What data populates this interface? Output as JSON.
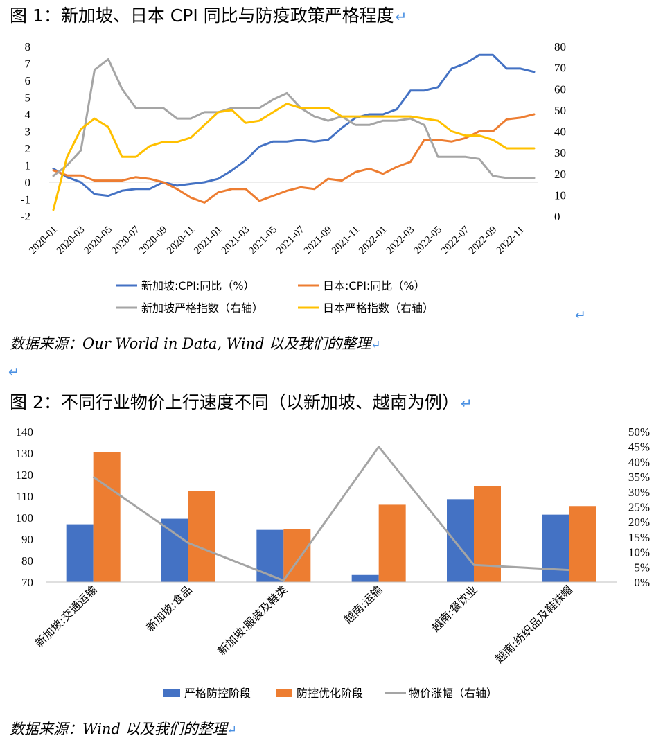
{
  "figure1": {
    "title": "图 1：新加坡、日本 CPI 同比与防疫政策严格程度",
    "source": "数据来源：Our World in Data, Wind 以及我们的整理"
  },
  "figure2": {
    "title": "图 2：不同行业物价上行速度不同（以新加坡、越南为例）",
    "source": "数据来源：Wind 以及我们的整理"
  },
  "return_mark": "↵",
  "chart_data": [
    {
      "type": "line",
      "dual_axis": true,
      "left_axis": {
        "ylim": [
          -2,
          8
        ],
        "ticks": [
          "-2",
          "-1",
          "0",
          "1",
          "2",
          "3",
          "4",
          "5",
          "6",
          "7",
          "8"
        ]
      },
      "right_axis": {
        "ylim": [
          0,
          80
        ],
        "ticks": [
          "0",
          "10",
          "20",
          "30",
          "40",
          "50",
          "60",
          "70",
          "80"
        ]
      },
      "x": [
        "2020-01",
        "2020-02",
        "2020-03",
        "2020-04",
        "2020-05",
        "2020-06",
        "2020-07",
        "2020-08",
        "2020-09",
        "2020-10",
        "2020-11",
        "2020-12",
        "2021-01",
        "2021-02",
        "2021-03",
        "2021-04",
        "2021-05",
        "2021-06",
        "2021-07",
        "2021-08",
        "2021-09",
        "2021-10",
        "2021-11",
        "2021-12",
        "2022-01",
        "2022-02",
        "2022-03",
        "2022-04",
        "2022-05",
        "2022-06",
        "2022-07",
        "2022-08",
        "2022-09",
        "2022-10",
        "2022-11",
        "2022-12"
      ],
      "x_tick_labels": [
        "2020-01",
        "2020-03",
        "2020-05",
        "2020-07",
        "2020-09",
        "2020-11",
        "2021-01",
        "2021-03",
        "2021-05",
        "2021-07",
        "2021-09",
        "2021-11",
        "2022-01",
        "2022-03",
        "2022-05",
        "2022-07",
        "2022-09",
        "2022-11"
      ],
      "legend_position": "bottom",
      "series": [
        {
          "name": "新加坡:CPI:同比（%）",
          "axis": "left",
          "color": "#4472C4",
          "values": [
            0.8,
            0.3,
            0.0,
            -0.7,
            -0.8,
            -0.5,
            -0.4,
            -0.4,
            0.0,
            -0.2,
            -0.1,
            0.0,
            0.2,
            0.7,
            1.3,
            2.1,
            2.4,
            2.4,
            2.5,
            2.4,
            2.5,
            3.2,
            3.8,
            4.0,
            4.0,
            4.3,
            5.4,
            5.4,
            5.6,
            6.7,
            7.0,
            7.5,
            7.5,
            6.7,
            6.7,
            6.5
          ]
        },
        {
          "name": "日本:CPI:同比（%）",
          "axis": "left",
          "color": "#ED7D31",
          "values": [
            0.7,
            0.4,
            0.4,
            0.1,
            0.1,
            0.1,
            0.3,
            0.2,
            0.0,
            -0.4,
            -0.9,
            -1.2,
            -0.6,
            -0.4,
            -0.4,
            -1.1,
            -0.8,
            -0.5,
            -0.3,
            -0.4,
            0.2,
            0.1,
            0.6,
            0.8,
            0.5,
            0.9,
            1.2,
            2.5,
            2.5,
            2.4,
            2.6,
            3.0,
            3.0,
            3.7,
            3.8,
            4.0
          ]
        },
        {
          "name": "新加坡严格指数（右轴）",
          "axis": "right",
          "color": "#A5A5A5",
          "values": [
            19,
            24,
            31,
            69,
            74,
            60,
            51,
            51,
            51,
            46,
            46,
            49,
            49,
            51,
            51,
            51,
            55,
            58,
            51,
            47,
            45,
            47,
            43,
            43,
            45,
            45,
            46,
            43,
            28,
            28,
            28,
            27,
            19,
            18,
            18,
            18
          ]
        },
        {
          "name": "日本严格指数（右轴）",
          "axis": "right",
          "color": "#FFC000",
          "values": [
            3,
            28,
            41,
            46,
            42,
            28,
            28,
            33,
            35,
            35,
            37,
            43,
            49,
            50,
            44,
            45,
            49,
            53,
            51,
            51,
            51,
            47,
            47,
            47,
            47,
            47,
            47,
            46,
            45,
            40,
            38,
            38,
            36,
            32,
            32,
            32
          ]
        }
      ]
    },
    {
      "type": "bar",
      "dual_axis": true,
      "categories": [
        "新加坡:交通运输",
        "新加坡:食品",
        "新加坡:服装及鞋类",
        "越南:运输",
        "越南:餐饮业",
        "越南:纺织品及鞋袜帽"
      ],
      "left_axis": {
        "ylim": [
          70,
          140
        ],
        "ticks": [
          "70",
          "80",
          "90",
          "100",
          "110",
          "120",
          "130",
          "140"
        ]
      },
      "right_axis": {
        "ylim": [
          0,
          0.5
        ],
        "ticks": [
          "0%",
          "5%",
          "10%",
          "15%",
          "20%",
          "25%",
          "30%",
          "35%",
          "40%",
          "45%",
          "50%"
        ]
      },
      "legend_position": "bottom",
      "series": [
        {
          "name": "严格防控阶段",
          "kind": "bar",
          "axis": "left",
          "color": "#4472C4",
          "values": [
            96.9,
            99.5,
            94.3,
            73.3,
            108.6,
            101.4
          ]
        },
        {
          "name": "防控优化阶段",
          "kind": "bar",
          "axis": "left",
          "color": "#ED7D31",
          "values": [
            130.5,
            112.3,
            94.7,
            106.0,
            114.8,
            105.4
          ]
        },
        {
          "name": "物价涨幅（右轴）",
          "kind": "line",
          "axis": "right",
          "color": "#A5A5A5",
          "values": [
            0.35,
            0.13,
            0.005,
            0.45,
            0.057,
            0.04
          ]
        }
      ]
    }
  ]
}
